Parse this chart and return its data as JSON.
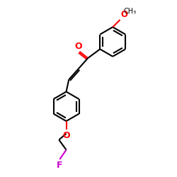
{
  "bg_color": "#ffffff",
  "bond_color": "#000000",
  "oxygen_color": "#ff0000",
  "fluorine_color": "#cc00cc",
  "text_color": "#000000",
  "line_width": 1.5,
  "font_size": 8.5,
  "fig_size": [
    2.5,
    2.5
  ],
  "dpi": 100,
  "xlim": [
    0,
    10
  ],
  "ylim": [
    0,
    10
  ]
}
